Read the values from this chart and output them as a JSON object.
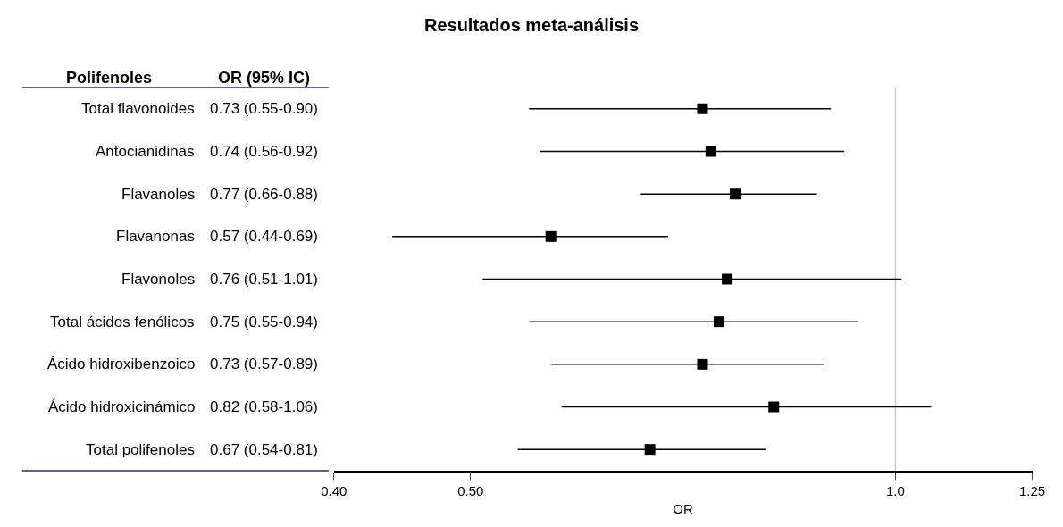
{
  "chart_data": {
    "type": "scatter",
    "orientation": "horizontal",
    "title": "Resultados meta-análisis",
    "xlabel": "OR",
    "categories": [
      "Total flavonoides",
      "Antocianidinas",
      "Flavanoles",
      "Flavanonas",
      "Flavonoles",
      "Total ácidos fenólicos",
      "Ácido hidroxibenzoico",
      "Ácido hidroxicinámico",
      "Total polifenoles"
    ],
    "series": [
      {
        "color": "#000000",
        "values": [
          0.73,
          0.74,
          0.77,
          0.57,
          0.76,
          0.75,
          0.73,
          0.82,
          0.67
        ],
        "errors": [
          [
            0.55,
            0.9
          ],
          [
            0.56,
            0.92
          ],
          [
            0.66,
            0.88
          ],
          [
            0.44,
            0.69
          ],
          [
            0.51,
            1.01
          ],
          [
            0.55,
            0.94
          ],
          [
            0.57,
            0.89
          ],
          [
            0.58,
            1.06
          ],
          [
            0.54,
            0.81
          ]
        ],
        "value_labels": [
          "0.73 (0.55-0.90)",
          "0.74 (0.56-0.92)",
          "0.77 (0.66-0.88)",
          "0.57 (0.44-0.69)",
          "0.76 (0.51-1.01)",
          "0.75 (0.55-0.94)",
          "0.73 (0.57-0.89)",
          "0.82 (0.58-1.06)",
          "0.67 (0.54-0.81)"
        ]
      }
    ],
    "log": "x",
    "xlim": [
      0.4,
      1.25
    ],
    "xticks": [
      {
        "value": 0.4,
        "label": "0.40"
      },
      {
        "value": 0.5,
        "label": "0.50"
      },
      {
        "value": 1.0,
        "label": "1.0"
      },
      1.25
    ],
    "ref_lines": [
      {
        "axis": "x",
        "value": 1.0,
        "color": "#cccccc"
      }
    ],
    "marker": "square",
    "tick_labels": "x",
    "annotations": [
      "Polifenoles",
      "OR (95% IC)"
    ]
  }
}
